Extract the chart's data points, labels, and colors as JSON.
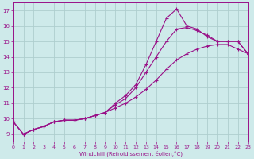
{
  "xlabel": "Windchill (Refroidissement éolien,°C)",
  "bg_color": "#ceeaea",
  "grid_color": "#aecece",
  "line_color": "#991188",
  "xlim": [
    0,
    23
  ],
  "ylim": [
    8.5,
    17.5
  ],
  "xticks": [
    0,
    1,
    2,
    3,
    4,
    5,
    6,
    7,
    8,
    9,
    10,
    11,
    12,
    13,
    14,
    15,
    16,
    17,
    18,
    19,
    20,
    21,
    22,
    23
  ],
  "yticks": [
    9,
    10,
    11,
    12,
    13,
    14,
    15,
    16,
    17
  ],
  "line1_x": [
    0,
    1,
    2,
    3,
    4,
    5,
    6,
    7,
    8,
    9,
    10,
    11,
    12,
    13,
    14,
    15,
    16,
    17,
    18,
    19,
    20,
    21,
    22,
    23
  ],
  "line1_y": [
    9.8,
    9.0,
    9.3,
    9.5,
    9.8,
    9.9,
    9.9,
    10.0,
    10.2,
    10.4,
    10.7,
    11.0,
    11.4,
    11.9,
    12.5,
    13.2,
    13.8,
    14.2,
    14.5,
    14.7,
    14.8,
    14.8,
    14.5,
    14.2
  ],
  "line2_x": [
    0,
    1,
    2,
    3,
    4,
    5,
    6,
    7,
    8,
    9,
    10,
    11,
    12,
    13,
    14,
    15,
    16,
    17,
    18,
    19,
    20,
    21,
    22,
    23
  ],
  "line2_y": [
    9.8,
    9.0,
    9.3,
    9.5,
    9.8,
    9.9,
    9.9,
    10.0,
    10.2,
    10.4,
    10.9,
    11.3,
    12.0,
    13.0,
    14.0,
    15.0,
    15.8,
    15.9,
    15.7,
    15.4,
    15.0,
    15.0,
    15.0,
    14.2
  ],
  "line3_x": [
    0,
    1,
    2,
    3,
    4,
    5,
    6,
    7,
    8,
    9,
    10,
    11,
    12,
    13,
    14,
    15,
    16,
    17,
    18,
    19,
    20,
    21,
    22,
    23
  ],
  "line3_y": [
    9.8,
    9.0,
    9.3,
    9.5,
    9.8,
    9.9,
    9.9,
    10.0,
    10.2,
    10.4,
    11.0,
    11.5,
    12.2,
    13.5,
    15.0,
    16.5,
    17.1,
    16.0,
    15.8,
    15.3,
    15.0,
    15.0,
    15.0,
    14.2
  ]
}
